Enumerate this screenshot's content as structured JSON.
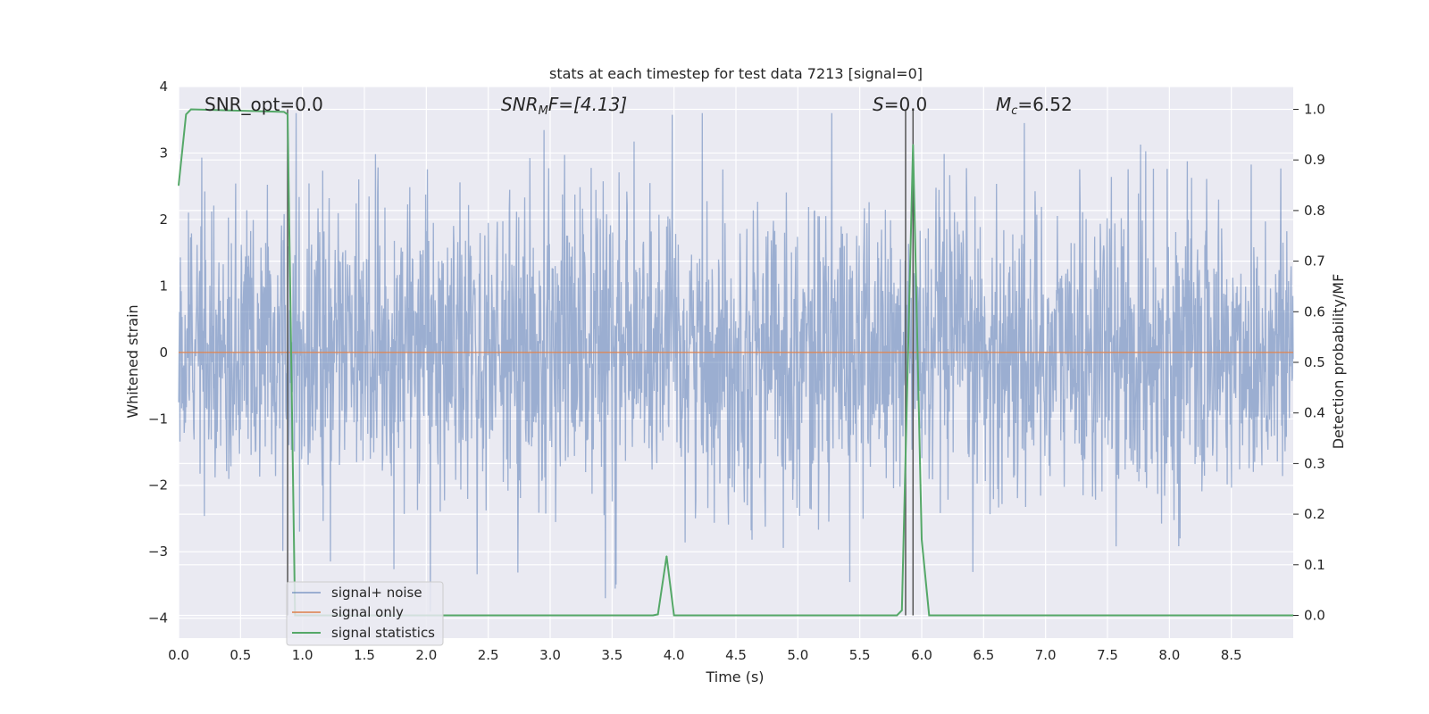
{
  "chart_data": {
    "type": "line",
    "title": "stats at each timestep for test data 7213 [signal=0]",
    "xlabel": "Time (s)",
    "ylabel_left": "Whitened strain",
    "ylabel_right": "Detection probability/MF",
    "xlim": [
      0.0,
      9.0
    ],
    "ylim_left": [
      -4.3,
      4.0
    ],
    "ylim_right": [
      -0.045,
      1.045
    ],
    "x_ticks": [
      "0.0",
      "0.5",
      "1.0",
      "1.5",
      "2.0",
      "2.5",
      "3.0",
      "3.5",
      "4.0",
      "4.5",
      "5.0",
      "5.5",
      "6.0",
      "6.5",
      "7.0",
      "7.5",
      "8.0",
      "8.5"
    ],
    "y_ticks_left": [
      "4",
      "3",
      "2",
      "1",
      "0",
      "−1",
      "−2",
      "−3",
      "−4"
    ],
    "y_ticks_right": [
      "1.0",
      "0.9",
      "0.8",
      "0.7",
      "0.6",
      "0.5",
      "0.4",
      "0.3",
      "0.2",
      "0.1",
      "0.0"
    ],
    "grid": true,
    "annotations": {
      "snr_opt": "SNR_opt=0.0",
      "snr_mf_prefix": "SNR",
      "snr_mf_sub": "M",
      "snr_mf_suffix": "F=[4.13]",
      "s_italic": "S",
      "s_value": "=0.0",
      "mc_italic": "M",
      "mc_sub": "c",
      "mc_value": "=6.52"
    },
    "vlines_x": [
      0.88,
      5.87,
      5.93
    ],
    "series": [
      {
        "name": "signal+ noise",
        "color": "#4c72b0",
        "axis": "left",
        "style": "dense noise, amplitude ~±2, peaks to ~±3.6"
      },
      {
        "name": "signal only",
        "color": "#dd8452",
        "axis": "left",
        "x": [
          0.0,
          9.0
        ],
        "y": [
          0.0,
          0.0
        ]
      },
      {
        "name": "signal statistics",
        "color": "#55a868",
        "axis": "right",
        "x": [
          0.0,
          0.06,
          0.1,
          0.85,
          0.88,
          0.94,
          3.83,
          3.87,
          3.94,
          4.0,
          5.8,
          5.84,
          5.93,
          6.0,
          6.06,
          9.0
        ],
        "y": [
          0.85,
          0.99,
          1.0,
          0.995,
          0.99,
          0.0,
          0.0,
          0.002,
          0.117,
          0.0,
          0.0,
          0.01,
          0.93,
          0.15,
          0.0,
          0.0
        ]
      }
    ],
    "legend": {
      "placement": "lower-left",
      "entries": [
        "signal+ noise",
        "signal only",
        "signal statistics"
      ]
    }
  }
}
